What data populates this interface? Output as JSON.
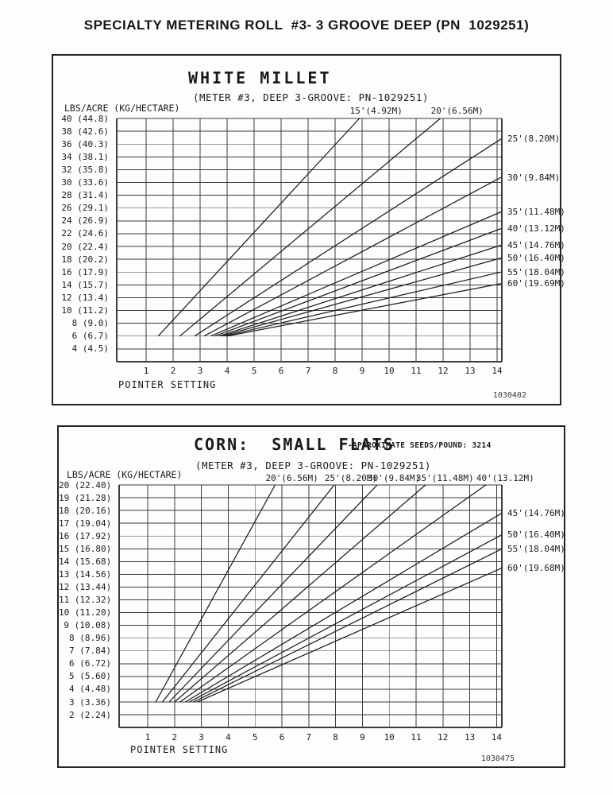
{
  "page": {
    "title": "SPECIALTY METERING ROLL  #3- 3 GROOVE DEEP (PN  1029251)"
  },
  "chart_data": [
    {
      "type": "line",
      "title": "WHITE MILLET",
      "subtitle": "(METER #3, DEEP 3-GROOVE: PN-1029251)",
      "note": "",
      "ylabel": "LBS/ACRE (KG/HECTARE)",
      "xlabel": "POINTER SETTING",
      "corner_code": "1030402",
      "grid": true,
      "legend_position": "line-ends",
      "xlim": [
        1,
        14
      ],
      "ylim": [
        4,
        40
      ],
      "x_ticks": [
        "1",
        "2",
        "3",
        "4",
        "5",
        "6",
        "7",
        "8",
        "9",
        "10",
        "11",
        "12",
        "13",
        "14"
      ],
      "y_axis_rows": [
        {
          "v": 40,
          "label": "40 (44.8)"
        },
        {
          "v": 38,
          "label": "38 (42.6)"
        },
        {
          "v": 36,
          "label": "36 (40.3)"
        },
        {
          "v": 34,
          "label": "34 (38.1)"
        },
        {
          "v": 32,
          "label": "32 (35.8)"
        },
        {
          "v": 30,
          "label": "30 (33.6)"
        },
        {
          "v": 28,
          "label": "28 (31.4)"
        },
        {
          "v": 26,
          "label": "26 (29.1)"
        },
        {
          "v": 24,
          "label": "24 (26.9)"
        },
        {
          "v": 22,
          "label": "22 (24.6)"
        },
        {
          "v": 20,
          "label": "20 (22.4)"
        },
        {
          "v": 18,
          "label": "18 (20.2)"
        },
        {
          "v": 16,
          "label": "16 (17.9)"
        },
        {
          "v": 14,
          "label": "14 (15.7)"
        },
        {
          "v": 12,
          "label": "12 (13.4)"
        },
        {
          "v": 10,
          "label": "10 (11.2)"
        },
        {
          "v": 8,
          "label": "8 (9.0)"
        },
        {
          "v": 6,
          "label": "6 (6.7)"
        },
        {
          "v": 4,
          "label": "4 (4.5)"
        }
      ],
      "series": [
        {
          "name": "15'(4.92M)",
          "label_anchor": "top",
          "points": [
            [
              1.45,
              6
            ],
            [
              8.9,
              40
            ]
          ]
        },
        {
          "name": "20'(6.56M)",
          "label_anchor": "top",
          "points": [
            [
              2.25,
              6
            ],
            [
              11.9,
              40
            ]
          ]
        },
        {
          "name": "25'(8.20M)",
          "label_anchor": "right",
          "points": [
            [
              2.8,
              6
            ],
            [
              14.15,
              36.8
            ]
          ]
        },
        {
          "name": "30'(9.84M)",
          "label_anchor": "right",
          "points": [
            [
              3.15,
              6
            ],
            [
              14.15,
              30.8
            ]
          ]
        },
        {
          "name": "35'(11.48M)",
          "label_anchor": "right",
          "points": [
            [
              3.4,
              6
            ],
            [
              14.15,
              25.4
            ]
          ]
        },
        {
          "name": "40'(13.12M)",
          "label_anchor": "right",
          "points": [
            [
              3.55,
              6
            ],
            [
              14.15,
              22.8
            ]
          ]
        },
        {
          "name": "45'(14.76M)",
          "label_anchor": "right",
          "points": [
            [
              3.7,
              6
            ],
            [
              14.15,
              20.2
            ]
          ]
        },
        {
          "name": "50'(16.40M)",
          "label_anchor": "right",
          "points": [
            [
              3.8,
              6
            ],
            [
              14.15,
              18.2
            ]
          ]
        },
        {
          "name": "55'(18.04M)",
          "label_anchor": "right",
          "points": [
            [
              3.9,
              6
            ],
            [
              14.15,
              16.0
            ]
          ]
        },
        {
          "name": "60'(19.69M)",
          "label_anchor": "right",
          "points": [
            [
              4.0,
              6
            ],
            [
              14.15,
              14.2
            ]
          ]
        }
      ]
    },
    {
      "type": "line",
      "title": "CORN:  SMALL FLATS",
      "subtitle": "(METER #3, DEEP 3-GROOVE: PN-1029251)",
      "note": "-APPROXIMATE SEEDS/POUND: 3214",
      "ylabel": "LBS/ACRE (KG/HECTARE)",
      "xlabel": "POINTER SETTING",
      "corner_code": "1030475",
      "grid": true,
      "legend_position": "line-ends",
      "xlim": [
        1,
        14
      ],
      "ylim": [
        2,
        20
      ],
      "x_ticks": [
        "1",
        "2",
        "3",
        "4",
        "5",
        "6",
        "7",
        "8",
        "9",
        "10",
        "11",
        "12",
        "13",
        "14"
      ],
      "y_axis_rows": [
        {
          "v": 20,
          "label": "20 (22.40)"
        },
        {
          "v": 19,
          "label": "19 (21.28)"
        },
        {
          "v": 18,
          "label": "18 (20.16)"
        },
        {
          "v": 17,
          "label": "17 (19.04)"
        },
        {
          "v": 16,
          "label": "16 (17.92)"
        },
        {
          "v": 15,
          "label": "15 (16.80)"
        },
        {
          "v": 14,
          "label": "14 (15.68)"
        },
        {
          "v": 13,
          "label": "13 (14.56)"
        },
        {
          "v": 12,
          "label": "12 (13.44)"
        },
        {
          "v": 11,
          "label": "11 (12.32)"
        },
        {
          "v": 10,
          "label": "10 (11.20)"
        },
        {
          "v": 9,
          "label": "9 (10.08)"
        },
        {
          "v": 8,
          "label": "8 (8.96)"
        },
        {
          "v": 7,
          "label": "7 (7.84)"
        },
        {
          "v": 6,
          "label": "6 (6.72)"
        },
        {
          "v": 5,
          "label": "5 (5.60)"
        },
        {
          "v": 4,
          "label": "4 (4.48)"
        },
        {
          "v": 3,
          "label": "3 (3.36)"
        },
        {
          "v": 2,
          "label": "2 (2.24)"
        }
      ],
      "series": [
        {
          "name": "20'(6.56M)",
          "label_anchor": "top",
          "points": [
            [
              1.3,
              3
            ],
            [
              5.75,
              20
            ]
          ]
        },
        {
          "name": "25'(8.20M)",
          "label_anchor": "top",
          "points": [
            [
              1.55,
              3
            ],
            [
              7.95,
              20
            ]
          ]
        },
        {
          "name": "30'(9.84M)",
          "label_anchor": "top",
          "points": [
            [
              1.8,
              3
            ],
            [
              9.55,
              20
            ]
          ]
        },
        {
          "name": "35'(11.48M)",
          "label_anchor": "top",
          "points": [
            [
              2.0,
              3
            ],
            [
              11.35,
              20
            ]
          ]
        },
        {
          "name": "40'(13.12M)",
          "label_anchor": "top",
          "points": [
            [
              2.2,
              3
            ],
            [
              13.6,
              20
            ]
          ]
        },
        {
          "name": "45'(14.76M)",
          "label_anchor": "right",
          "points": [
            [
              2.4,
              3
            ],
            [
              14.2,
              17.8
            ]
          ]
        },
        {
          "name": "50'(16.40M)",
          "label_anchor": "right",
          "points": [
            [
              2.55,
              3
            ],
            [
              14.2,
              16.1
            ]
          ]
        },
        {
          "name": "55'(18.04M)",
          "label_anchor": "right",
          "points": [
            [
              2.7,
              3
            ],
            [
              14.2,
              15.0
            ]
          ]
        },
        {
          "name": "60'(19.68M)",
          "label_anchor": "right",
          "points": [
            [
              2.85,
              3
            ],
            [
              14.2,
              13.5
            ]
          ]
        }
      ]
    }
  ]
}
